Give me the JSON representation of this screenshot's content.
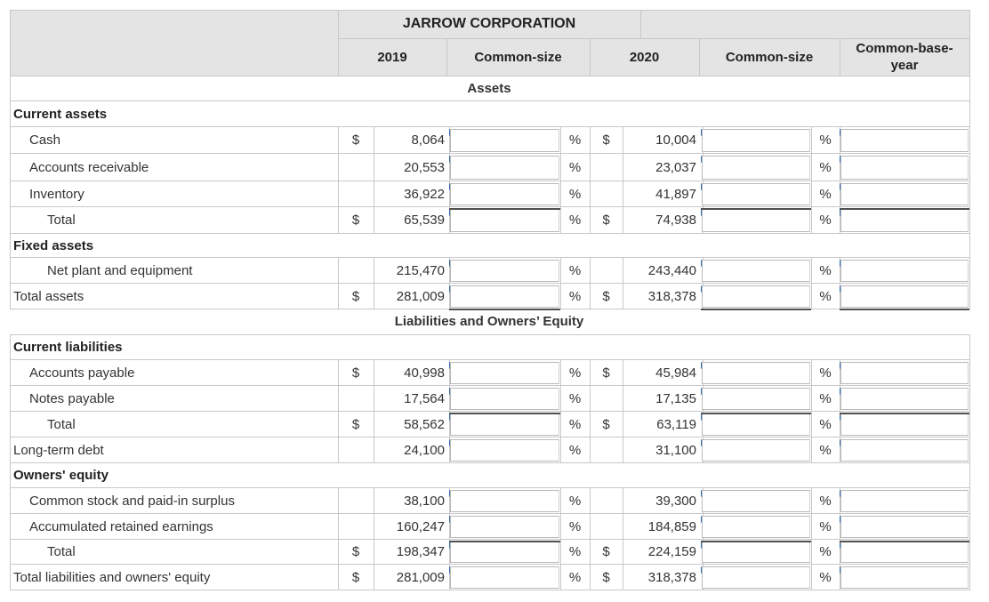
{
  "header": {
    "company": "JARROW CORPORATION",
    "col_2019": "2019",
    "col_cs1": "Common-size",
    "col_2020": "2020",
    "col_cs2": "Common-size",
    "col_cby": "Common-base-\nyear"
  },
  "sections": {
    "assets": "Assets",
    "liabilities": "Liabilities and Owners’ Equity"
  },
  "symbols": {
    "dollar": "$",
    "percent": "%"
  },
  "rows": [
    {
      "label": "Current assets",
      "bold": true,
      "kind": "heading"
    },
    {
      "label": "Cash",
      "v2019": "8,064",
      "v2020": "10,004",
      "d2019": true,
      "d2020": true
    },
    {
      "label": "Accounts receivable",
      "v2019": "20,553",
      "v2020": "23,037"
    },
    {
      "label": "Inventory",
      "v2019": "36,922",
      "v2020": "41,897"
    },
    {
      "label": "Total",
      "v2019": "65,539",
      "v2020": "74,938",
      "d2019": true,
      "d2020": true
    },
    {
      "label": "Fixed assets",
      "bold": true,
      "kind": "heading"
    },
    {
      "label": "Net plant and equipment",
      "v2019": "215,470",
      "v2020": "243,440"
    },
    {
      "label": "Total assets",
      "v2019": "281,009",
      "v2020": "318,378",
      "d2019": true,
      "d2020": true
    },
    {
      "label": "Current liabilities",
      "bold": true,
      "kind": "heading"
    },
    {
      "label": "Accounts payable",
      "v2019": "40,998",
      "v2020": "45,984",
      "d2019": true,
      "d2020": true
    },
    {
      "label": "Notes payable",
      "v2019": "17,564",
      "v2020": "17,135"
    },
    {
      "label": "Total",
      "v2019": "58,562",
      "v2020": "63,119",
      "d2019": true,
      "d2020": true
    },
    {
      "label": "Long-term debt",
      "v2019": "24,100",
      "v2020": "31,100"
    },
    {
      "label": "Owners' equity",
      "bold": true,
      "kind": "heading"
    },
    {
      "label": "Common stock and paid-in surplus",
      "v2019": "38,100",
      "v2020": "39,300"
    },
    {
      "label": "Accumulated retained earnings",
      "v2019": "160,247",
      "v2020": "184,859"
    },
    {
      "label": "Total",
      "v2019": "198,347",
      "v2020": "224,159",
      "d2019": true,
      "d2020": true
    },
    {
      "label": "Total liabilities and owners' equity",
      "v2019": "281,009",
      "v2020": "318,378",
      "d2019": true,
      "d2020": true
    }
  ]
}
